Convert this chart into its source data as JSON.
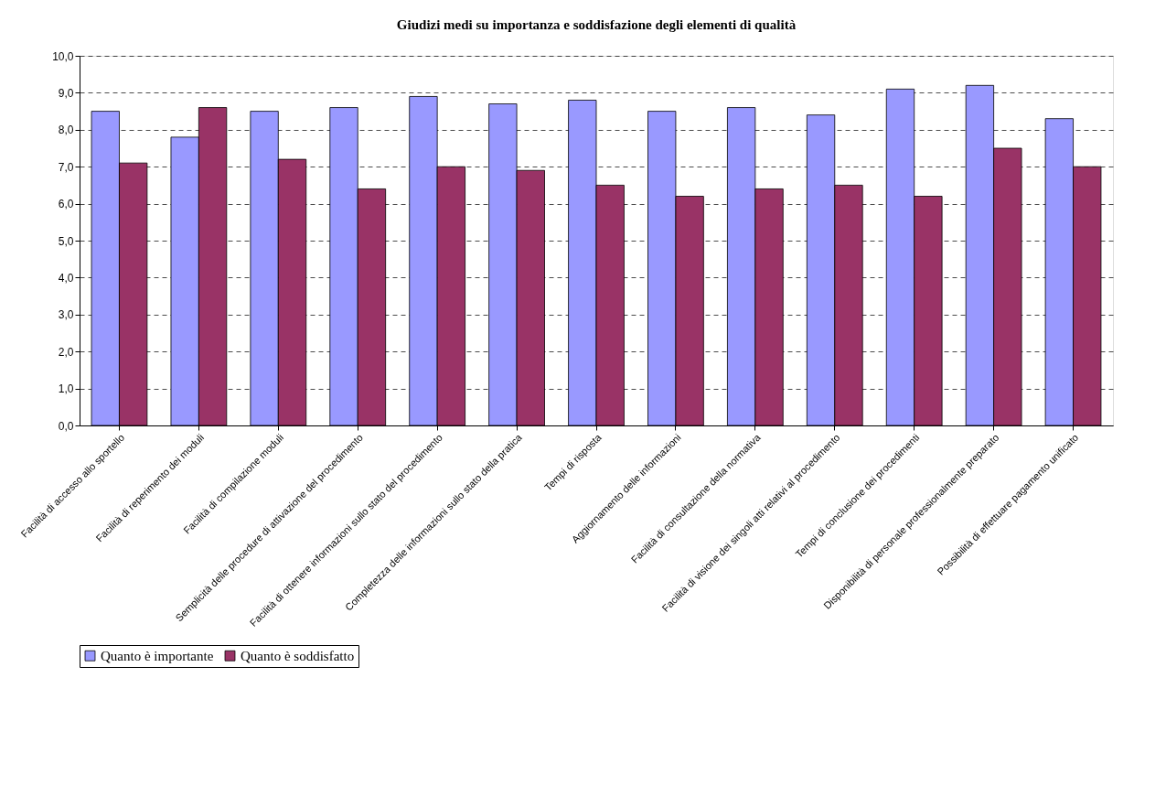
{
  "chart_data": {
    "type": "bar",
    "title": "Giudizi medi su importanza e soddisfazione degli elementi di qualità",
    "categories": [
      "Facilità di accesso allo sportello",
      "Facilità di reperimento dei moduli",
      "Facilità di compilazione moduli",
      "Semplicità delle procedure di attivazione del procedimento",
      "Facilità di ottenere informazioni sullo stato del procedimento",
      "Completezza delle informazioni sullo stato della pratica",
      "Tempi di risposta",
      "Aggiornamento delle informazioni",
      "Facilità di consultazione della normativa",
      "Facilità di visione dei singoli atti relativi al procedimento",
      "Tempi di conclusione dei procedimenti",
      "Disponibilità di personale professionalmente preparato",
      "Possibilità di effettuare pagamento unificato"
    ],
    "series": [
      {
        "name": "Quanto è importante",
        "color": "#9999ff",
        "values": [
          8.5,
          7.8,
          8.5,
          8.6,
          8.9,
          8.7,
          8.8,
          8.5,
          8.6,
          8.4,
          9.1,
          9.2,
          8.3
        ]
      },
      {
        "name": "Quanto è soddisfatto",
        "color": "#993366",
        "values": [
          7.1,
          8.6,
          7.2,
          6.4,
          7.0,
          6.9,
          6.5,
          6.2,
          6.4,
          6.5,
          6.2,
          7.5,
          7.0
        ]
      }
    ],
    "ylim": [
      0,
      10
    ],
    "yticks": [
      {
        "value": 0,
        "label": "0,0"
      },
      {
        "value": 1,
        "label": "1,0"
      },
      {
        "value": 2,
        "label": "2,0"
      },
      {
        "value": 3,
        "label": "3,0"
      },
      {
        "value": 4,
        "label": "4,0"
      },
      {
        "value": 5,
        "label": "5,0"
      },
      {
        "value": 6,
        "label": "6,0"
      },
      {
        "value": 7,
        "label": "7,0"
      },
      {
        "value": 8,
        "label": "8,0"
      },
      {
        "value": 9,
        "label": "9,0"
      },
      {
        "value": 10,
        "label": "10,0"
      }
    ],
    "grid": "y",
    "legend": "bottom"
  }
}
